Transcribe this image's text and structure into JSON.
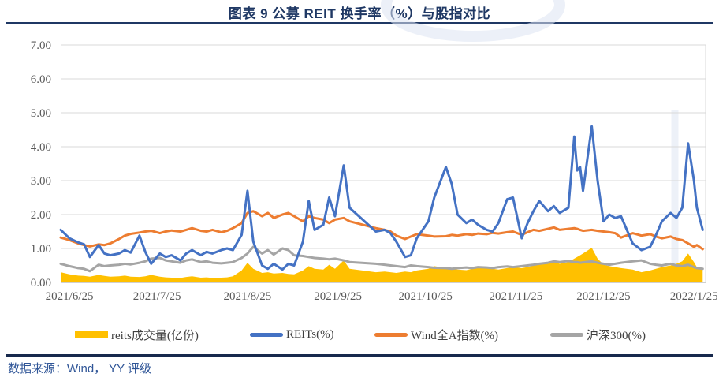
{
  "header": {
    "title": "图表 9 公募 REIT 换手率（%）与股指对比"
  },
  "footer": {
    "source": "数据来源：Wind， YY 评级"
  },
  "theme": {
    "title_color": "#1F3864",
    "rule_color": "#1F3864",
    "footer_rule_color": "#17294D",
    "footer_text_color": "#2F5597",
    "grid_color": "#D9D9D9",
    "axis_color": "#BFBFBF",
    "tick_label_color": "#595959",
    "legend_text_color": "#3F3F3F",
    "watermark_color": "#DCE4F2",
    "background": "#FFFFFF"
  },
  "chart_data": {
    "type": "line",
    "title": "图表 9 公募 REIT 换手率（%）与股指对比",
    "xlabel": "",
    "ylabel": "",
    "ylim": [
      0,
      7
    ],
    "grid": "horizontal",
    "legend_position": "bottom",
    "x_unit": "days since 2021/6/22",
    "x_domain": [
      0,
      221
    ],
    "x_tick_days": [
      3,
      33,
      64,
      95,
      125,
      156,
      186,
      217
    ],
    "x_tick_labels": [
      "2021/6/25",
      "2021/7/25",
      "2021/8/25",
      "2021/9/25",
      "2021/10/25",
      "2021/11/25",
      "2021/12/25",
      "2022/1/25"
    ],
    "y_tick_values": [
      0,
      1,
      2,
      3,
      4,
      5,
      6,
      7
    ],
    "y_tick_labels": [
      "0.00",
      "1.00",
      "2.00",
      "3.00",
      "4.00",
      "5.00",
      "6.00",
      "7.00"
    ],
    "x_days": [
      0,
      3,
      6,
      8,
      10,
      13,
      15,
      17,
      20,
      22,
      24,
      27,
      29,
      31,
      34,
      36,
      38,
      41,
      43,
      45,
      48,
      50,
      52,
      55,
      57,
      59,
      62,
      64,
      66,
      69,
      71,
      73,
      76,
      78,
      80,
      83,
      85,
      87,
      90,
      92,
      94,
      97,
      99,
      108,
      111,
      113,
      115,
      118,
      120,
      122,
      126,
      128,
      132,
      134,
      136,
      139,
      141,
      143,
      146,
      148,
      150,
      153,
      155,
      158,
      160,
      162,
      164,
      167,
      169,
      171,
      174,
      176,
      177,
      178,
      179,
      182,
      184,
      186,
      188,
      190,
      192,
      196,
      199,
      202,
      204,
      206,
      209,
      211,
      213,
      215,
      217,
      218,
      220
    ],
    "draw_order": [
      0,
      3,
      2,
      1
    ],
    "series": [
      {
        "name": "reits成交量(亿份)",
        "type": "area",
        "color": "#FFC000",
        "values": [
          0.3,
          0.24,
          0.2,
          0.19,
          0.17,
          0.22,
          0.19,
          0.17,
          0.18,
          0.2,
          0.17,
          0.16,
          0.18,
          0.22,
          0.17,
          0.15,
          0.14,
          0.13,
          0.16,
          0.18,
          0.14,
          0.15,
          0.13,
          0.14,
          0.15,
          0.18,
          0.35,
          0.58,
          0.4,
          0.28,
          0.3,
          0.26,
          0.28,
          0.25,
          0.24,
          0.35,
          0.48,
          0.4,
          0.38,
          0.52,
          0.4,
          0.65,
          0.4,
          0.3,
          0.32,
          0.3,
          0.28,
          0.32,
          0.3,
          0.35,
          0.4,
          0.48,
          0.42,
          0.4,
          0.38,
          0.36,
          0.4,
          0.42,
          0.44,
          0.4,
          0.38,
          0.42,
          0.45,
          0.42,
          0.45,
          0.5,
          0.52,
          0.55,
          0.6,
          0.55,
          0.6,
          0.7,
          0.75,
          0.8,
          0.85,
          1.02,
          0.7,
          0.52,
          0.48,
          0.45,
          0.42,
          0.38,
          0.3,
          0.35,
          0.4,
          0.45,
          0.5,
          0.55,
          0.62,
          0.85,
          0.6,
          0.45,
          0.4
        ]
      },
      {
        "name": "REITs(%)",
        "type": "line",
        "color": "#4472C4",
        "values": [
          1.55,
          1.3,
          1.18,
          1.12,
          0.75,
          1.1,
          0.85,
          0.8,
          0.85,
          0.95,
          0.88,
          1.38,
          0.9,
          0.55,
          0.85,
          0.75,
          0.8,
          0.65,
          0.85,
          0.95,
          0.8,
          0.9,
          0.85,
          0.95,
          1.0,
          0.95,
          1.4,
          2.7,
          1.2,
          0.5,
          0.4,
          0.55,
          0.38,
          0.55,
          0.5,
          1.2,
          2.4,
          1.55,
          1.7,
          2.5,
          1.95,
          3.45,
          2.2,
          1.5,
          1.55,
          1.45,
          1.2,
          0.75,
          0.8,
          1.3,
          1.8,
          2.5,
          3.4,
          2.9,
          2.0,
          1.75,
          1.85,
          1.7,
          1.55,
          1.5,
          1.75,
          2.45,
          2.5,
          1.3,
          1.75,
          2.1,
          2.4,
          2.1,
          2.25,
          2.05,
          2.2,
          4.3,
          3.3,
          3.4,
          2.7,
          4.6,
          3.0,
          1.8,
          2.0,
          1.9,
          1.95,
          1.15,
          0.95,
          1.05,
          1.4,
          1.8,
          2.05,
          1.9,
          2.2,
          4.1,
          3.0,
          2.2,
          1.55
        ]
      },
      {
        "name": "Wind全A指数(%)",
        "type": "line",
        "color": "#ED7D31",
        "values": [
          1.32,
          1.25,
          1.15,
          1.1,
          1.06,
          1.12,
          1.1,
          1.15,
          1.28,
          1.38,
          1.43,
          1.47,
          1.5,
          1.52,
          1.45,
          1.5,
          1.53,
          1.5,
          1.55,
          1.6,
          1.52,
          1.5,
          1.55,
          1.48,
          1.52,
          1.6,
          1.75,
          2.05,
          2.1,
          1.95,
          2.05,
          1.9,
          2.0,
          2.05,
          1.95,
          1.8,
          1.95,
          1.9,
          1.85,
          1.75,
          1.85,
          1.9,
          1.8,
          1.6,
          1.55,
          1.5,
          1.38,
          1.28,
          1.35,
          1.42,
          1.38,
          1.35,
          1.36,
          1.4,
          1.38,
          1.42,
          1.4,
          1.44,
          1.42,
          1.46,
          1.44,
          1.48,
          1.5,
          1.4,
          1.48,
          1.55,
          1.52,
          1.58,
          1.62,
          1.55,
          1.58,
          1.6,
          1.58,
          1.55,
          1.52,
          1.55,
          1.52,
          1.5,
          1.48,
          1.45,
          1.32,
          1.45,
          1.38,
          1.42,
          1.35,
          1.3,
          1.35,
          1.28,
          1.25,
          1.15,
          1.05,
          1.1,
          0.98
        ]
      },
      {
        "name": "沪深300(%)",
        "type": "line",
        "color": "#A5A5A5",
        "values": [
          0.55,
          0.48,
          0.42,
          0.4,
          0.33,
          0.52,
          0.48,
          0.5,
          0.52,
          0.55,
          0.53,
          0.58,
          0.62,
          0.7,
          0.72,
          0.65,
          0.62,
          0.58,
          0.65,
          0.68,
          0.6,
          0.62,
          0.58,
          0.56,
          0.58,
          0.6,
          0.72,
          0.85,
          1.05,
          0.85,
          0.95,
          0.82,
          1.0,
          0.95,
          0.8,
          0.78,
          0.75,
          0.72,
          0.7,
          0.68,
          0.7,
          0.65,
          0.6,
          0.55,
          0.52,
          0.5,
          0.48,
          0.45,
          0.5,
          0.48,
          0.45,
          0.43,
          0.42,
          0.4,
          0.42,
          0.44,
          0.42,
          0.45,
          0.44,
          0.42,
          0.45,
          0.47,
          0.45,
          0.48,
          0.5,
          0.52,
          0.55,
          0.58,
          0.62,
          0.6,
          0.63,
          0.6,
          0.6,
          0.58,
          0.59,
          0.62,
          0.58,
          0.55,
          0.52,
          0.55,
          0.58,
          0.62,
          0.65,
          0.55,
          0.52,
          0.5,
          0.55,
          0.5,
          0.48,
          0.52,
          0.45,
          0.42,
          0.4
        ]
      }
    ]
  }
}
